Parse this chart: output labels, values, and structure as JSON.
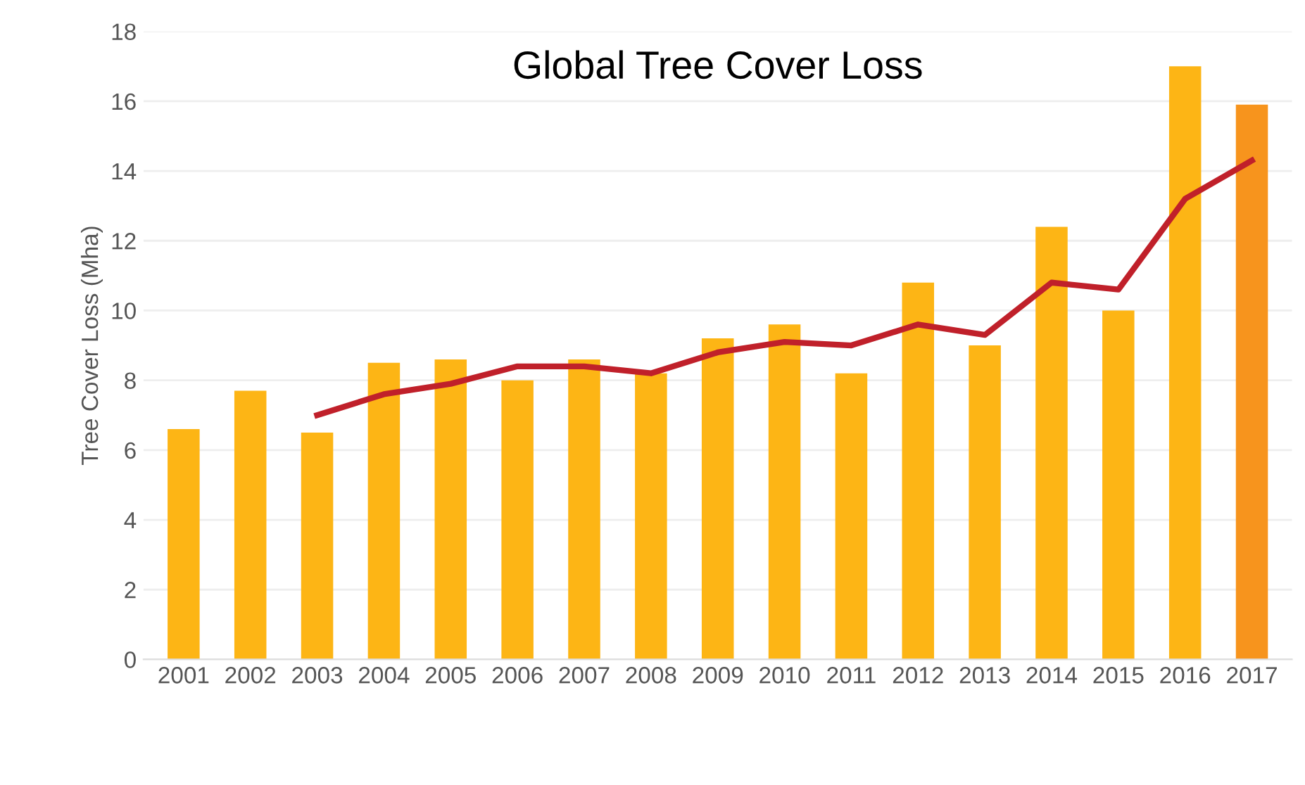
{
  "chart_data": {
    "type": "bar",
    "title": "Global Tree Cover Loss",
    "ylabel": "Tree Cover Loss (Mha)",
    "categories": [
      "2001",
      "2002",
      "2003",
      "2004",
      "2005",
      "2006",
      "2007",
      "2008",
      "2009",
      "2010",
      "2011",
      "2012",
      "2013",
      "2014",
      "2015",
      "2016",
      "2017"
    ],
    "series": [
      {
        "values": [
          6.6,
          7.7,
          6.5,
          8.5,
          8.6,
          8.0,
          8.6,
          8.2,
          9.2,
          9.6,
          8.2,
          10.8,
          9.0,
          12.4,
          10.0,
          17.0,
          15.9
        ],
        "colors": [
          "#fdb515",
          "#fdb515",
          "#fdb515",
          "#fdb515",
          "#fdb515",
          "#fdb515",
          "#fdb515",
          "#fdb515",
          "#fdb515",
          "#fdb515",
          "#fdb515",
          "#fdb515",
          "#fdb515",
          "#fdb515",
          "#fdb515",
          "#fdb515",
          "#f7941d"
        ]
      },
      {
        "type": "line",
        "color": "#c0202a",
        "values": [
          null,
          null,
          7.0,
          7.6,
          7.9,
          8.4,
          8.4,
          8.2,
          8.8,
          9.1,
          9.0,
          9.6,
          9.3,
          10.8,
          10.6,
          13.2,
          14.3
        ]
      }
    ],
    "ylim": [
      0,
      18
    ],
    "yticks": [
      0,
      2,
      4,
      6,
      8,
      10,
      12,
      14,
      16,
      18
    ],
    "grid": "y",
    "marker": "none",
    "line_style": "solid"
  }
}
